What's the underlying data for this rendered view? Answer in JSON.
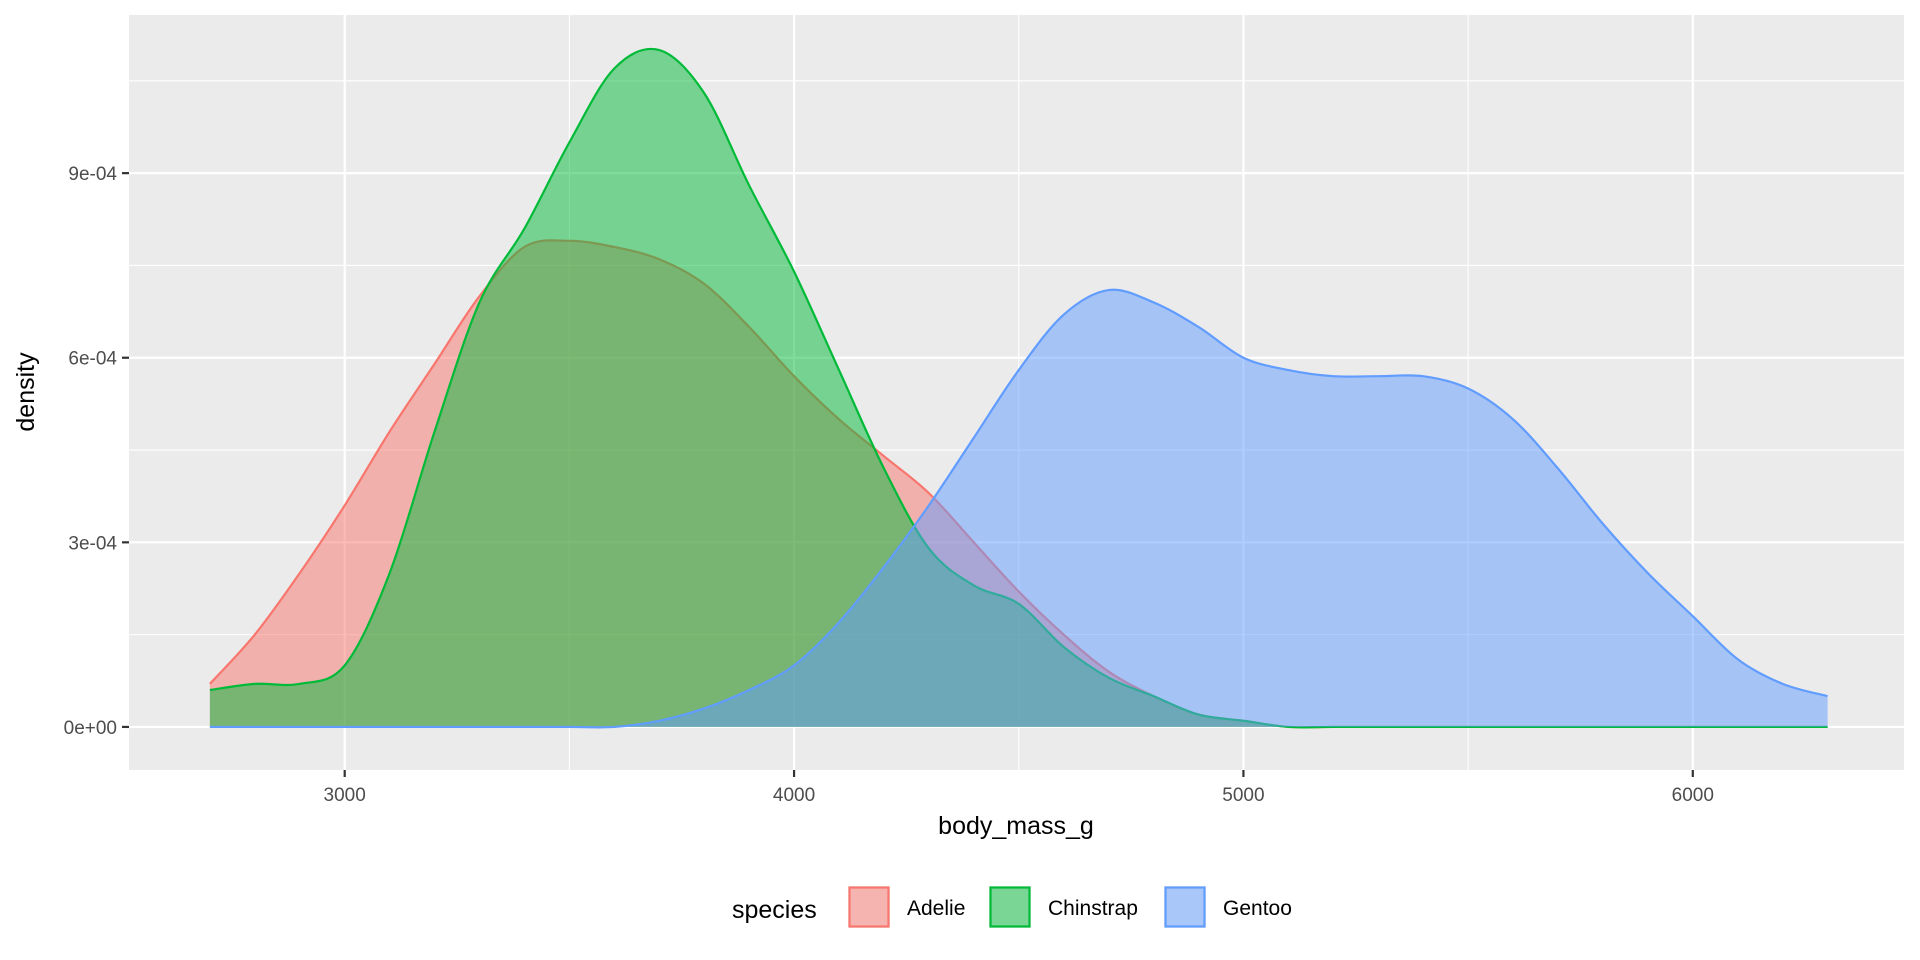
{
  "chart_data": {
    "type": "area",
    "subtype": "density",
    "title": "",
    "xlabel": "body_mass_g",
    "ylabel": "density",
    "xlim": [
      2520,
      6470
    ],
    "ylim": [
      -7e-05,
      0.001157
    ],
    "x_ticks": [
      3000,
      4000,
      5000,
      6000
    ],
    "x_tick_labels": [
      "3000",
      "4000",
      "5000",
      "6000"
    ],
    "y_ticks": [
      0,
      0.0003,
      0.0006,
      0.0009
    ],
    "y_tick_labels": [
      "0e+00",
      "3e-04",
      "6e-04",
      "9e-04"
    ],
    "grid": true,
    "legend": {
      "title": "species",
      "position": "bottom",
      "entries": [
        "Adelie",
        "Chinstrap",
        "Gentoo"
      ]
    },
    "series": [
      {
        "name": "Adelie",
        "color": "#F8766D",
        "x": [
          2700,
          2800,
          2900,
          3000,
          3100,
          3200,
          3300,
          3400,
          3500,
          3600,
          3700,
          3800,
          3900,
          4000,
          4100,
          4200,
          4300,
          4400,
          4500,
          4600,
          4700,
          4800,
          4900,
          5000,
          5100,
          5200,
          5300,
          5400,
          5500,
          5600,
          5700,
          5800,
          5900,
          6000,
          6100,
          6200,
          6300
        ],
        "y": [
          7e-05,
          0.00015,
          0.00025,
          0.00036,
          0.00048,
          0.00059,
          0.0007,
          0.00078,
          0.00079,
          0.00078,
          0.00076,
          0.00072,
          0.00065,
          0.00057,
          0.0005,
          0.00044,
          0.00038,
          0.0003,
          0.00022,
          0.00015,
          9e-05,
          5e-05,
          2e-05,
          1e-05,
          0,
          0,
          0,
          0,
          0,
          0,
          0,
          0,
          0,
          0,
          0,
          0,
          0
        ]
      },
      {
        "name": "Chinstrap",
        "color": "#00BA38",
        "x": [
          2700,
          2800,
          2900,
          3000,
          3100,
          3200,
          3300,
          3400,
          3500,
          3600,
          3700,
          3800,
          3900,
          4000,
          4100,
          4200,
          4300,
          4400,
          4500,
          4600,
          4700,
          4800,
          4900,
          5000,
          5100,
          5200,
          5300,
          5400,
          5500,
          5600,
          5700,
          5800,
          5900,
          6000,
          6100,
          6200,
          6300
        ],
        "y": [
          6e-05,
          7e-05,
          7e-05,
          0.0001,
          0.00025,
          0.00048,
          0.00069,
          0.00081,
          0.00095,
          0.00107,
          0.0011,
          0.00103,
          0.00088,
          0.00074,
          0.00058,
          0.00042,
          0.00029,
          0.00023,
          0.0002,
          0.00013,
          8e-05,
          5e-05,
          2e-05,
          1e-05,
          0,
          0,
          0,
          0,
          0,
          0,
          0,
          0,
          0,
          0,
          0,
          0,
          0
        ]
      },
      {
        "name": "Gentoo",
        "color": "#619CFF",
        "x": [
          2700,
          2800,
          2900,
          3000,
          3100,
          3200,
          3300,
          3400,
          3500,
          3600,
          3700,
          3800,
          3900,
          4000,
          4100,
          4200,
          4300,
          4400,
          4500,
          4600,
          4700,
          4800,
          4900,
          5000,
          5100,
          5200,
          5300,
          5400,
          5500,
          5600,
          5700,
          5800,
          5900,
          6000,
          6100,
          6200,
          6300
        ],
        "y": [
          0,
          0,
          0,
          0,
          0,
          0,
          0,
          0,
          0,
          0,
          1e-05,
          3e-05,
          6e-05,
          0.0001,
          0.00017,
          0.00026,
          0.00036,
          0.00047,
          0.00058,
          0.00067,
          0.00071,
          0.00069,
          0.00065,
          0.0006,
          0.00058,
          0.00057,
          0.00057,
          0.00057,
          0.00055,
          0.0005,
          0.00042,
          0.00033,
          0.00025,
          0.00018,
          0.00011,
          7e-05,
          5e-05
        ]
      }
    ]
  }
}
